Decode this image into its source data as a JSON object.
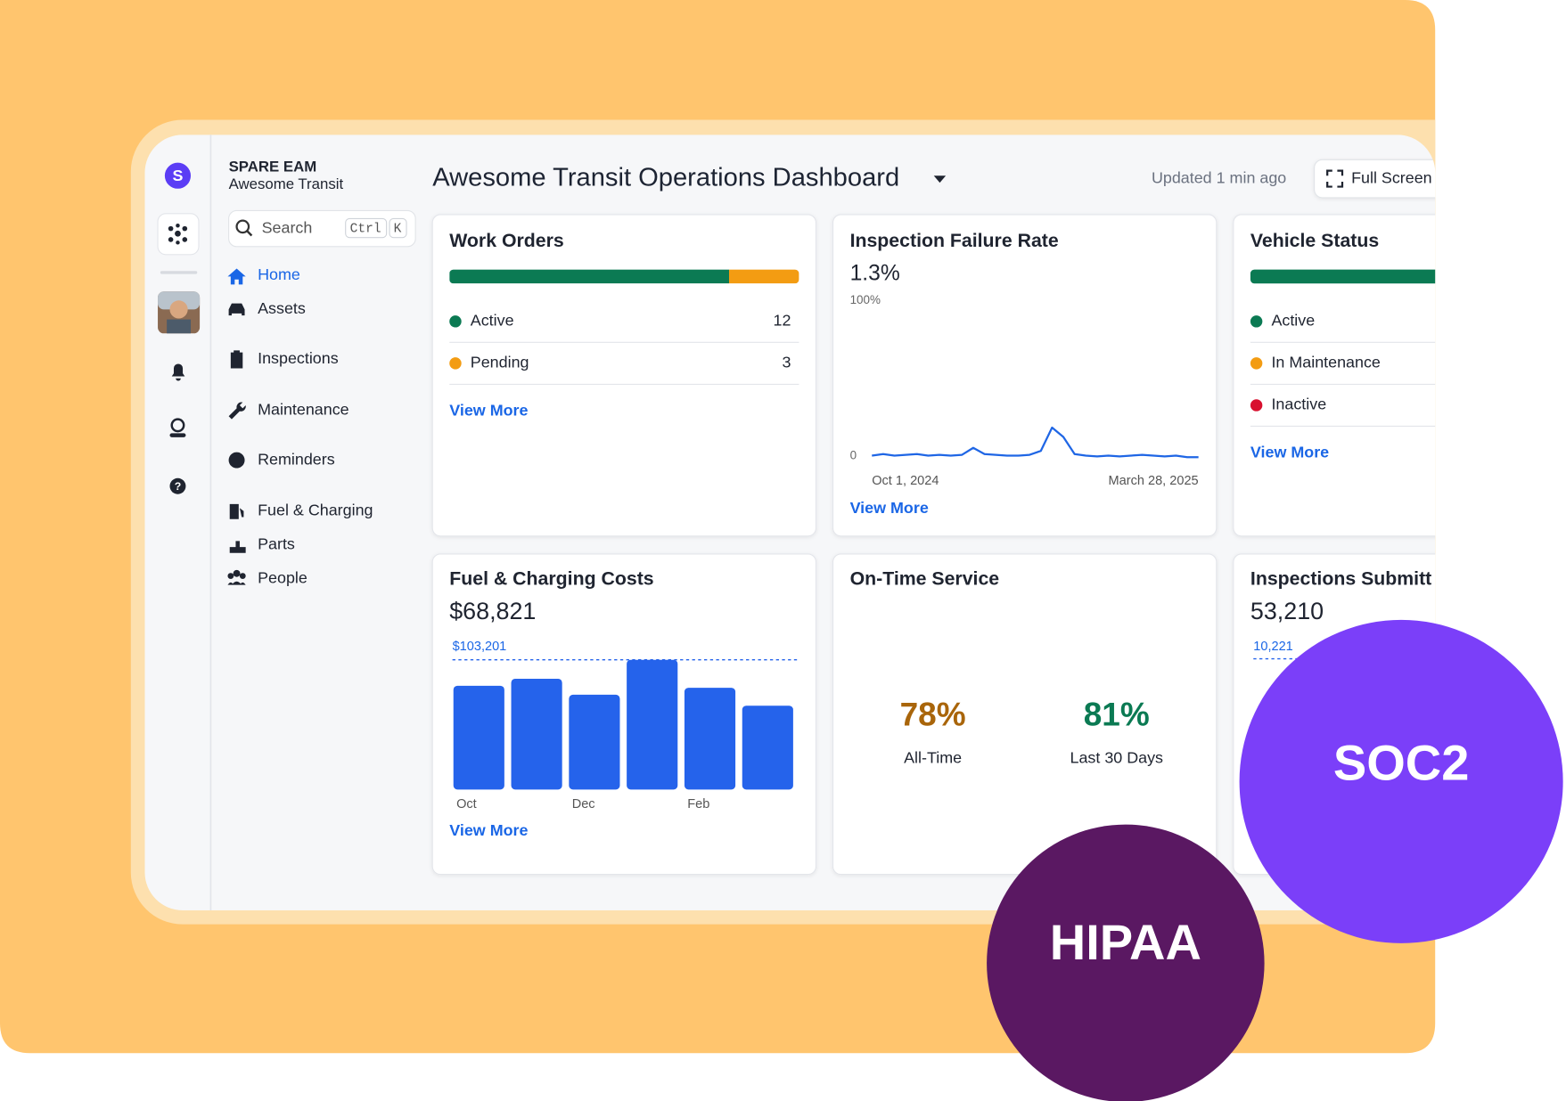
{
  "sidebar": {
    "logo": "S",
    "brand": "SPARE EAM",
    "org": "Awesome Transit",
    "search": "Search",
    "shortcut": [
      "Ctrl",
      "K"
    ],
    "nav": [
      "Home",
      "Assets",
      "Inspections",
      "Maintenance",
      "Reminders",
      "Fuel & Charging",
      "Parts",
      "People"
    ]
  },
  "header": {
    "title": "Awesome Transit Operations Dashboard",
    "updated": "Updated 1 min ago",
    "fullscreen": "Full Screen"
  },
  "work_orders": {
    "title": "Work Orders",
    "items": [
      {
        "label": "Active",
        "value": 12,
        "color": "#0b7a53"
      },
      {
        "label": "Pending",
        "value": 3,
        "color": "#f39c12"
      }
    ],
    "link": "View More"
  },
  "inspection_failure_rate": {
    "title": "Inspection Failure Rate",
    "summary": "1.3%",
    "chart_data": {
      "type": "line",
      "categories": [
        "Oct 1, 2024",
        null,
        null,
        null,
        null,
        null,
        null,
        null,
        null,
        null,
        null,
        null,
        null,
        null,
        null,
        null,
        null,
        null,
        null,
        null,
        null,
        null,
        null,
        null,
        null,
        null,
        null,
        null,
        null,
        "March 28, 2025"
      ],
      "values": [
        1,
        2,
        1,
        1.5,
        2,
        1,
        1.5,
        1,
        1.5,
        6,
        2,
        1.5,
        1,
        1,
        1.5,
        4,
        19,
        13,
        2,
        1,
        0.5,
        1,
        0.5,
        1,
        1.5,
        1,
        0.5,
        1,
        0,
        0
      ],
      "ylim": [
        0,
        100
      ],
      "yticks": [
        0,
        {
          "value": 100,
          "label": "100%"
        }
      ],
      "color": "#1f66e5"
    },
    "link": "View More"
  },
  "vehicle_status": {
    "title": "Vehicle Status",
    "items": [
      {
        "label": "Active",
        "color": "#0b7a53"
      },
      {
        "label": "In Maintenance",
        "color": "#f39c12"
      },
      {
        "label": "Inactive",
        "color": "#d8102f"
      }
    ],
    "link": "View More"
  },
  "fuel_costs": {
    "title": "Fuel & Charging Costs",
    "summary": "$68,821",
    "chart_data": {
      "type": "bar",
      "categories": [
        "Oct",
        null,
        "Dec",
        null,
        "Feb",
        null
      ],
      "values": [
        82561,
        88118,
        75416,
        103201,
        80974,
        66686
      ],
      "color": "#2563eb",
      "ylim": [
        0,
        103201
      ],
      "reference": {
        "value": 103201,
        "label": "$103,201"
      }
    },
    "link": "View More"
  },
  "on_time_service": {
    "title": "On-Time Service",
    "metrics": [
      {
        "value": "78%",
        "label": "All-Time",
        "color": "#a9650a"
      },
      {
        "value": "81%",
        "label": "Last 30 Days",
        "color": "#0b7a53"
      }
    ]
  },
  "inspections_submitted": {
    "title": "Inspections Submitt",
    "summary": "53,210",
    "reference_label": "10,221"
  },
  "badges": [
    {
      "label": "SOC2",
      "color": "#7b3ff9"
    },
    {
      "label": "HIPAA",
      "color": "#5a1862"
    }
  ]
}
